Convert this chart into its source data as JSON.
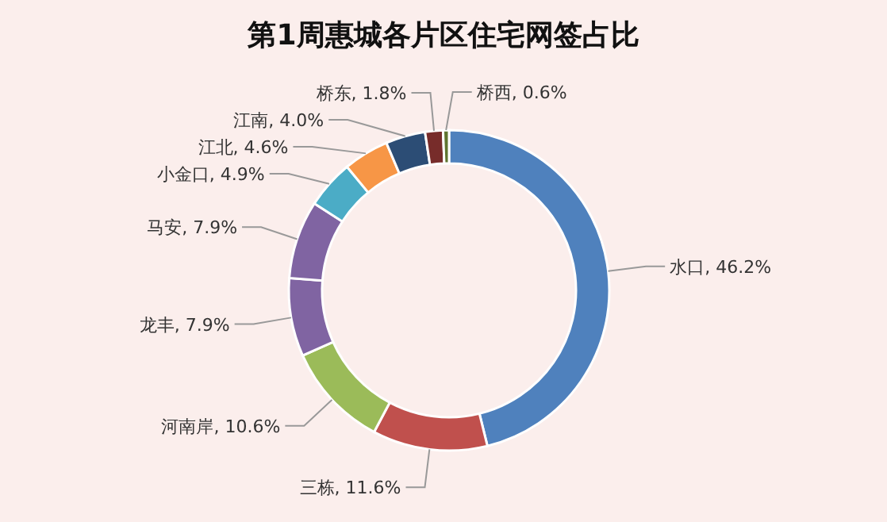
{
  "chart_data": {
    "type": "donut",
    "title": "第1周惠城各片区住宅网签占比",
    "categories": [
      "水口",
      "三栋",
      "河南岸",
      "龙丰",
      "马安",
      "小金口",
      "江北",
      "江南",
      "桥东",
      "桥西"
    ],
    "values": [
      46.2,
      11.6,
      10.6,
      7.9,
      7.9,
      4.9,
      4.6,
      4.0,
      1.8,
      0.6
    ],
    "value_labels": [
      "46.2%",
      "11.6%",
      "10.6%",
      "7.9%",
      "7.9%",
      "4.9%",
      "4.6%",
      "4.0%",
      "1.8%",
      "0.6%"
    ],
    "colors": [
      "#4f81bd",
      "#c0504d",
      "#9bbb59",
      "#8064a2",
      "#8064a2",
      "#4bacc6",
      "#f79646",
      "#2c4d75",
      "#772c2a",
      "#5f7530"
    ],
    "legend": false
  }
}
